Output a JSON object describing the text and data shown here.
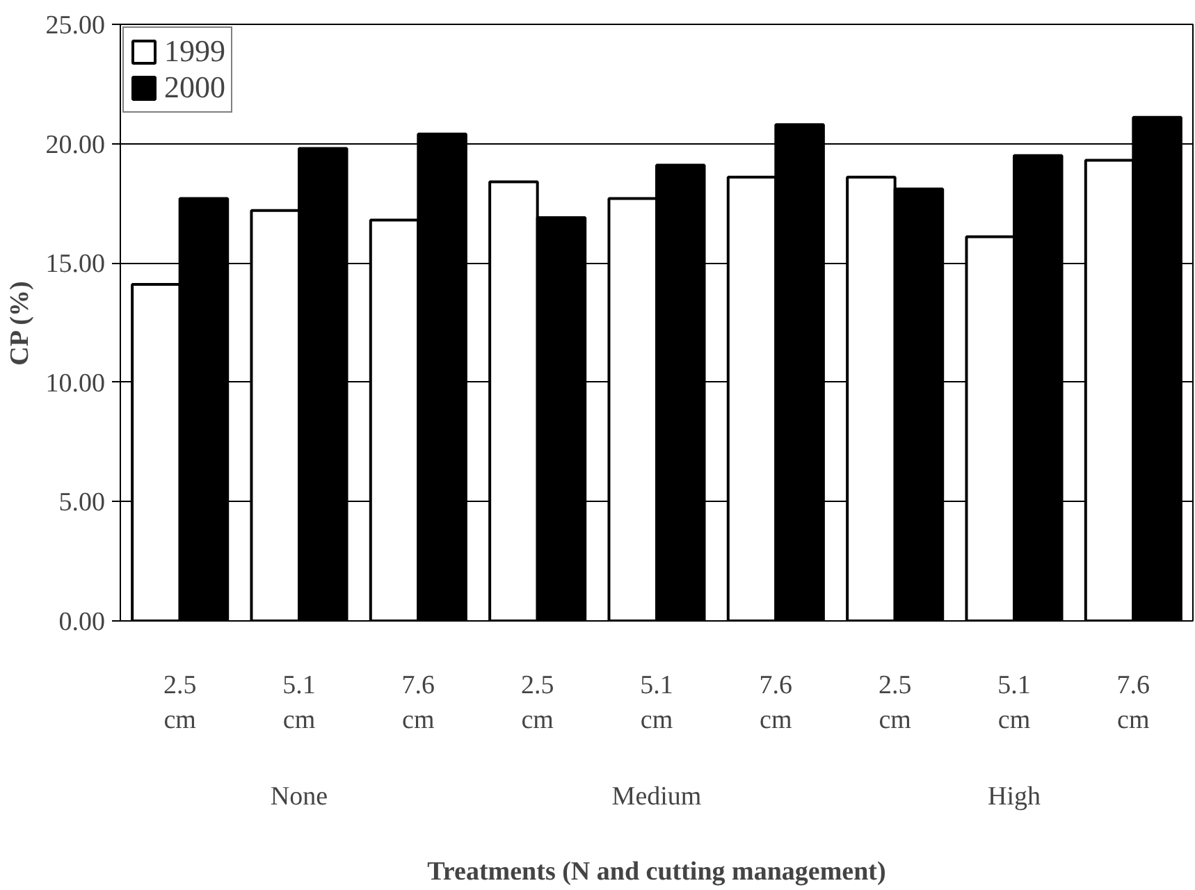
{
  "chart_data": {
    "type": "bar",
    "xlabel": "Treatments (N and cutting management)",
    "ylabel": "CP (%)",
    "categories": [
      "2.5 cm",
      "5.1 cm",
      "7.6 cm",
      "2.5 cm",
      "5.1 cm",
      "7.6 cm",
      "2.5 cm",
      "5.1 cm",
      "7.6 cm"
    ],
    "annotations": [
      "None",
      "Medium",
      "High"
    ],
    "series": [
      {
        "name": "1999",
        "color": "#ffffff",
        "values": [
          14.1,
          17.2,
          16.8,
          18.4,
          17.7,
          18.6,
          18.6,
          16.1,
          19.3
        ]
      },
      {
        "name": "2000",
        "color": "#000000",
        "values": [
          17.7,
          19.8,
          20.4,
          16.9,
          19.1,
          20.8,
          18.1,
          19.5,
          21.1
        ]
      }
    ],
    "ylim": [
      0,
      25
    ],
    "yticks": [
      {
        "value": 0,
        "label": "0.00"
      },
      {
        "value": 5,
        "label": "5.00"
      },
      {
        "value": 10,
        "label": "10.00"
      },
      {
        "value": 15,
        "label": "15.00"
      },
      {
        "value": 20,
        "label": "20.00"
      },
      {
        "value": 25,
        "label": "25.00"
      }
    ],
    "grid": "y",
    "legend": "top left"
  }
}
